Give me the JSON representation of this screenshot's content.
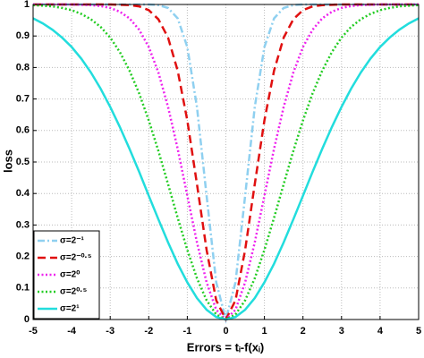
{
  "chart_data": {
    "type": "line",
    "xlabel": "Errors = tᵢ-f(xᵢ)",
    "ylabel": "loss",
    "x": [
      -5,
      -4.75,
      -4.5,
      -4.25,
      -4,
      -3.75,
      -3.5,
      -3.25,
      -3,
      -2.75,
      -2.5,
      -2.25,
      -2,
      -1.75,
      -1.5,
      -1.25,
      -1,
      -0.75,
      -0.5,
      -0.25,
      0,
      0.25,
      0.5,
      0.75,
      1,
      1.25,
      1.5,
      1.75,
      2,
      2.25,
      2.5,
      2.75,
      3,
      3.25,
      3.5,
      3.75,
      4,
      4.25,
      4.5,
      4.75,
      5
    ],
    "xlim": [
      -5,
      5
    ],
    "xticks": [
      -5,
      -4,
      -3,
      -2,
      -1,
      0,
      1,
      2,
      3,
      4,
      5
    ],
    "ylim": [
      0,
      1
    ],
    "yticks": [
      0,
      0.1,
      0.2,
      0.3,
      0.4,
      0.5,
      0.6,
      0.7,
      0.8,
      0.9,
      1
    ],
    "grid": true,
    "legend": "lower left",
    "series": [
      {
        "name": "σ=2⁻¹",
        "color": "#8fd0f0",
        "linestyle": "dashdot",
        "values": [
          1,
          1,
          1,
          1,
          1,
          1,
          1,
          1,
          1,
          1,
          1,
          1,
          1,
          0.998,
          0.989,
          0.956,
          0.865,
          0.675,
          0.393,
          0.118,
          0,
          0.118,
          0.393,
          0.675,
          0.865,
          0.956,
          0.989,
          0.998,
          1,
          1,
          1,
          1,
          1,
          1,
          1,
          1,
          1,
          1,
          1,
          1,
          1
        ]
      },
      {
        "name": "σ=2⁻⁰·⁵",
        "color": "#e01010",
        "linestyle": "dashed",
        "values": [
          1,
          1,
          1,
          1,
          1,
          1,
          1,
          1,
          1,
          0.999,
          0.998,
          0.994,
          0.982,
          0.953,
          0.895,
          0.79,
          0.632,
          0.43,
          0.221,
          0.061,
          0,
          0.061,
          0.221,
          0.43,
          0.632,
          0.79,
          0.895,
          0.953,
          0.982,
          0.994,
          0.998,
          0.999,
          1,
          1,
          1,
          1,
          1,
          1,
          1,
          1,
          1
        ]
      },
      {
        "name": "σ=2⁰",
        "color": "#ee22ee",
        "linestyle": "dotted",
        "values": [
          1,
          1,
          1,
          1,
          1,
          0.999,
          0.998,
          0.995,
          0.989,
          0.977,
          0.956,
          0.92,
          0.865,
          0.784,
          0.675,
          0.542,
          0.393,
          0.245,
          0.118,
          0.031,
          0,
          0.031,
          0.118,
          0.245,
          0.393,
          0.542,
          0.675,
          0.784,
          0.865,
          0.92,
          0.956,
          0.977,
          0.989,
          0.995,
          0.998,
          0.999,
          1,
          1,
          1,
          1,
          1
        ]
      },
      {
        "name": "σ=2⁰·⁵",
        "color": "#22cc22",
        "linestyle": "dotted",
        "values": [
          0.998,
          0.996,
          0.994,
          0.989,
          0.982,
          0.97,
          0.953,
          0.929,
          0.895,
          0.849,
          0.79,
          0.718,
          0.632,
          0.535,
          0.43,
          0.323,
          0.221,
          0.131,
          0.061,
          0.016,
          0,
          0.016,
          0.061,
          0.131,
          0.221,
          0.323,
          0.43,
          0.535,
          0.632,
          0.718,
          0.79,
          0.849,
          0.895,
          0.929,
          0.953,
          0.97,
          0.982,
          0.989,
          0.994,
          0.996,
          0.998
        ]
      },
      {
        "name": "σ=2¹",
        "color": "#22dddd",
        "linestyle": "solid",
        "values": [
          0.956,
          0.94,
          0.92,
          0.895,
          0.865,
          0.828,
          0.784,
          0.733,
          0.675,
          0.611,
          0.542,
          0.469,
          0.393,
          0.318,
          0.245,
          0.177,
          0.118,
          0.068,
          0.031,
          0.008,
          0,
          0.008,
          0.031,
          0.068,
          0.118,
          0.177,
          0.245,
          0.318,
          0.393,
          0.469,
          0.542,
          0.611,
          0.675,
          0.733,
          0.784,
          0.828,
          0.865,
          0.895,
          0.92,
          0.94,
          0.956
        ]
      }
    ]
  }
}
